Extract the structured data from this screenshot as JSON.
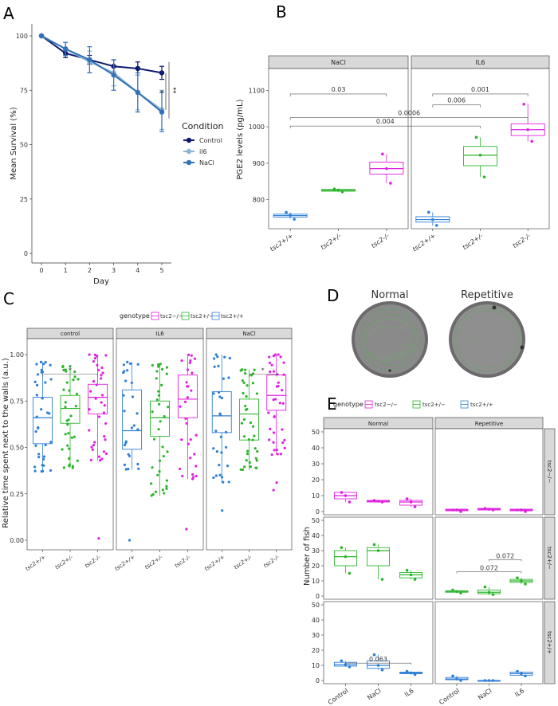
{
  "chart_data": [
    {
      "panel": "A",
      "type": "line",
      "x": [
        0,
        1,
        2,
        3,
        4,
        5
      ],
      "xlabel": "Day",
      "ylabel": "Mean Survival (%)",
      "xlim": [
        0,
        5
      ],
      "ylim": [
        0,
        100
      ],
      "yticks": [
        0,
        25,
        50,
        75,
        100
      ],
      "legend_title": "Condition",
      "legend_position": "right",
      "grid": false,
      "series": [
        {
          "name": "Control",
          "color": "#0d1a6e",
          "values": [
            100,
            92,
            89,
            86,
            85,
            83
          ],
          "err": [
            0,
            2,
            2,
            3,
            3,
            3
          ]
        },
        {
          "name": "il6",
          "color": "#8fb5d6",
          "values": [
            100,
            94,
            88,
            83,
            74,
            66
          ],
          "err": [
            0,
            3,
            5,
            6,
            8,
            9
          ]
        },
        {
          "name": "NaCl",
          "color": "#3272b8",
          "values": [
            100,
            94,
            89,
            82,
            74,
            65
          ],
          "err": [
            0,
            3,
            6,
            7,
            9,
            9
          ]
        }
      ],
      "annotations": [
        "*",
        "**"
      ]
    },
    {
      "panel": "B",
      "type": "box",
      "facets": [
        "NaCl",
        "IL6"
      ],
      "categories": [
        "tsc2+/+",
        "tsc2+/-",
        "tsc2-/-"
      ],
      "ylabel": "PGE2 levels (pg/mL)",
      "ylim": [
        720,
        1160
      ],
      "yticks": [
        800,
        900,
        1000,
        1100
      ],
      "series": [
        {
          "facet": "NaCl",
          "group": "tsc2+/+",
          "color": "#2f7fd6",
          "q1": 752,
          "median": 756,
          "q3": 760,
          "min": 747,
          "max": 765,
          "points": [
            765,
            757,
            746
          ]
        },
        {
          "facet": "NaCl",
          "group": "tsc2+/-",
          "color": "#2db52d",
          "q1": 823,
          "median": 825,
          "q3": 828,
          "min": 820,
          "max": 830,
          "points": [
            829,
            826,
            821
          ]
        },
        {
          "facet": "NaCl",
          "group": "tsc2-/-",
          "color": "#e020e0",
          "q1": 870,
          "median": 885,
          "q3": 903,
          "min": 845,
          "max": 925,
          "points": [
            925,
            885,
            845
          ]
        },
        {
          "facet": "IL6",
          "group": "tsc2+/+",
          "color": "#2f7fd6",
          "q1": 738,
          "median": 745,
          "q3": 753,
          "min": 728,
          "max": 765,
          "points": [
            765,
            745,
            729
          ]
        },
        {
          "facet": "IL6",
          "group": "tsc2+/-",
          "color": "#2db52d",
          "q1": 893,
          "median": 922,
          "q3": 946,
          "min": 862,
          "max": 971,
          "points": [
            971,
            922,
            862
          ]
        },
        {
          "facet": "IL6",
          "group": "tsc2-/-",
          "color": "#e020e0",
          "q1": 976,
          "median": 992,
          "q3": 1008,
          "min": 960,
          "max": 1062,
          "points": [
            1062,
            992,
            960
          ]
        }
      ],
      "comparisons": [
        {
          "facet": "NaCl",
          "from": "tsc2+/+",
          "to": "tsc2-/-",
          "y": 1090,
          "label": "0.03"
        },
        {
          "facet": "IL6",
          "from": "tsc2+/+",
          "to": "tsc2-/-",
          "y": 1090,
          "label": "0.001"
        },
        {
          "facet": "IL6",
          "from": "tsc2+/+",
          "to": "tsc2+/-",
          "y": 1060,
          "label": "0.006"
        },
        {
          "facet": "span",
          "from": "NaCl:tsc2+/+",
          "to": "IL6:tsc2-/-",
          "y": 1025,
          "label": "0.0006"
        },
        {
          "facet": "span",
          "from": "NaCl:tsc2+/+",
          "to": "IL6:tsc2+/-",
          "y": 1002,
          "label": "0.004"
        }
      ]
    },
    {
      "panel": "C",
      "type": "box",
      "facets": [
        "control",
        "IL6",
        "NaCl"
      ],
      "categories": [
        "tsc2+/+",
        "tsc2+/-",
        "tsc2-/-"
      ],
      "ylabel": "Relative time spent next to the walls (a.u.)",
      "ylim": [
        0,
        1
      ],
      "yticks": [
        0.0,
        0.25,
        0.5,
        0.75,
        1.0
      ],
      "legend_title": "genotype",
      "legend_position": "top",
      "legend": [
        "tsc2−/−",
        "tsc2+/−",
        "tsc2+/+"
      ],
      "series": [
        {
          "facet": "control",
          "group": "tsc2+/+",
          "color": "#2f7fd6",
          "q1": 0.52,
          "median": 0.66,
          "q3": 0.77,
          "min": 0.37,
          "max": 0.96,
          "n": 36
        },
        {
          "facet": "control",
          "group": "tsc2+/-",
          "color": "#2db52d",
          "q1": 0.63,
          "median": 0.71,
          "q3": 0.78,
          "min": 0.39,
          "max": 0.94,
          "n": 36
        },
        {
          "facet": "control",
          "group": "tsc2-/-",
          "color": "#e020e0",
          "q1": 0.68,
          "median": 0.77,
          "q3": 0.84,
          "min": 0.43,
          "max": 1.0,
          "n": 36,
          "outliers": [
            0.01
          ]
        },
        {
          "facet": "IL6",
          "group": "tsc2+/+",
          "color": "#2f7fd6",
          "q1": 0.49,
          "median": 0.59,
          "q3": 0.81,
          "min": 0.38,
          "max": 0.96,
          "n": 26,
          "outliers": [
            0.0
          ]
        },
        {
          "facet": "IL6",
          "group": "tsc2+/-",
          "color": "#2db52d",
          "q1": 0.56,
          "median": 0.66,
          "q3": 0.75,
          "min": 0.24,
          "max": 0.95,
          "n": 36
        },
        {
          "facet": "IL6",
          "group": "tsc2-/-",
          "color": "#e020e0",
          "q1": 0.66,
          "median": 0.76,
          "q3": 0.89,
          "min": 0.33,
          "max": 1.0,
          "n": 30,
          "outliers": [
            0.06
          ]
        },
        {
          "facet": "NaCl",
          "group": "tsc2+/+",
          "color": "#2f7fd6",
          "q1": 0.58,
          "median": 0.67,
          "q3": 0.8,
          "min": 0.31,
          "max": 1.0,
          "n": 30,
          "outliers": [
            0.16
          ]
        },
        {
          "facet": "NaCl",
          "group": "tsc2+/-",
          "color": "#2db52d",
          "q1": 0.54,
          "median": 0.68,
          "q3": 0.76,
          "min": 0.38,
          "max": 0.92,
          "n": 40
        },
        {
          "facet": "NaCl",
          "group": "tsc2-/-",
          "color": "#e020e0",
          "q1": 0.7,
          "median": 0.78,
          "q3": 0.89,
          "min": 0.46,
          "max": 1.0,
          "n": 36,
          "outliers": [
            0.31,
            0.27
          ]
        }
      ],
      "comparisons": [
        {
          "facet": "control",
          "from": "tsc2+/+",
          "to": "tsc2-/-",
          "y": 0.86,
          "label": "*"
        },
        {
          "facet": "NaCl",
          "from": "tsc2+/-",
          "to": "tsc2-/-",
          "y": 0.86,
          "label": "*"
        }
      ]
    },
    {
      "panel": "E",
      "type": "box",
      "facet_cols": [
        "Normal",
        "Repetitive"
      ],
      "facet_rows": [
        "tsc2−/−",
        "tsc2+/−",
        "tsc2+/+"
      ],
      "categories": [
        "Control",
        "NaCl",
        "IL6"
      ],
      "ylabel": "Number of fish",
      "ylim": [
        0,
        50
      ],
      "yticks": [
        0,
        10,
        20,
        30,
        40,
        50
      ],
      "legend_title": "genotype",
      "legend_position": "top",
      "legend": [
        "tsc2−/−",
        "tsc2+/−",
        "tsc2+/+"
      ],
      "series": [
        {
          "row": 0,
          "col": 0,
          "color": "#e020e0",
          "boxes": [
            [
              8,
              10,
              12,
              6,
              12
            ],
            [
              6,
              6.5,
              7,
              6,
              7
            ],
            [
              4,
              6,
              7,
              3,
              8
            ]
          ],
          "points": [
            [
              12,
              10,
              6
            ],
            [
              7,
              6.5,
              6
            ],
            [
              8,
              6,
              3
            ]
          ]
        },
        {
          "row": 0,
          "col": 1,
          "color": "#e020e0",
          "boxes": [
            [
              0.5,
              1,
              1.5,
              0,
              2
            ],
            [
              1,
              1.5,
              2,
              1,
              2
            ],
            [
              0.5,
              1,
              1.5,
              0,
              2
            ]
          ],
          "points": [
            [
              1,
              1,
              0
            ],
            [
              2,
              1.5,
              1
            ],
            [
              1,
              1,
              0
            ]
          ]
        },
        {
          "row": 1,
          "col": 0,
          "color": "#2db52d",
          "boxes": [
            [
              20,
              26,
              30,
              15,
              32
            ],
            [
              20,
              30,
              32,
              11,
              34
            ],
            [
              12,
              14,
              15.5,
              11,
              17
            ]
          ],
          "points": [
            [
              32,
              26,
              15
            ],
            [
              34,
              30,
              11
            ],
            [
              17,
              14,
              11
            ]
          ]
        },
        {
          "row": 1,
          "col": 1,
          "color": "#2db52d",
          "boxes": [
            [
              2.5,
              3,
              3.5,
              2,
              4
            ],
            [
              1.5,
              2.5,
              4,
              1,
              6
            ],
            [
              9,
              10,
              11,
              8,
              12
            ]
          ],
          "points": [
            [
              4,
              3,
              2
            ],
            [
              6,
              2.5,
              1
            ],
            [
              12,
              10,
              8
            ]
          ]
        },
        {
          "row": 2,
          "col": 0,
          "color": "#2f7fd6",
          "boxes": [
            [
              9.5,
              10.5,
              12,
              9,
              13
            ],
            [
              8,
              10,
              13,
              7,
              17
            ],
            [
              4.5,
              5,
              5.5,
              4,
              6
            ]
          ],
          "points": [
            [
              13,
              10.5,
              9
            ],
            [
              17,
              10,
              7
            ],
            [
              6,
              5,
              4
            ]
          ]
        },
        {
          "row": 2,
          "col": 1,
          "color": "#2f7fd6",
          "boxes": [
            [
              0.5,
              1,
              2,
              0,
              3
            ],
            [
              0,
              0,
              0,
              0,
              0
            ],
            [
              3.5,
              4.5,
              5.5,
              3,
              6
            ]
          ],
          "points": [
            [
              3,
              1,
              0
            ],
            [
              0,
              0,
              0
            ],
            [
              6,
              4.5,
              3
            ]
          ]
        }
      ],
      "comparisons": [
        {
          "row": 1,
          "col": 1,
          "from": "Control",
          "to": "IL6",
          "y": 16,
          "label": "0.072"
        },
        {
          "row": 1,
          "col": 1,
          "from": "NaCl",
          "to": "IL6",
          "y": 24,
          "label": "0.072"
        },
        {
          "row": 2,
          "col": 0,
          "from": "Control",
          "to": "IL6",
          "y": 11.5,
          "label": "0.063"
        }
      ]
    }
  ],
  "figure": {
    "panel_labels": [
      "A",
      "B",
      "C",
      "D",
      "E"
    ],
    "images_D": {
      "left_title": "Normal",
      "right_title": "Repetitive"
    }
  }
}
